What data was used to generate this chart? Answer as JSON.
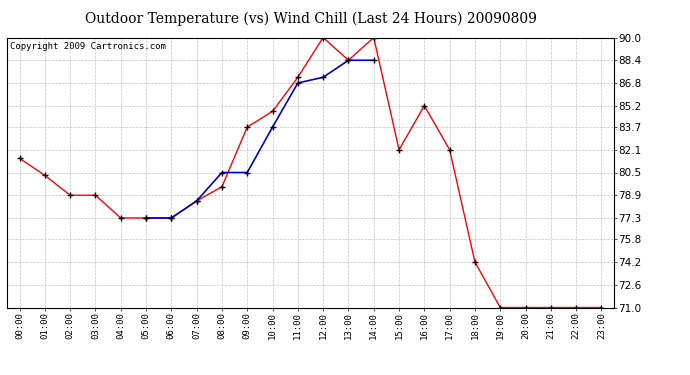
{
  "title": "Outdoor Temperature (vs) Wind Chill (Last 24 Hours) 20090809",
  "copyright": "Copyright 2009 Cartronics.com",
  "x_labels": [
    "00:00",
    "01:00",
    "02:00",
    "03:00",
    "04:00",
    "05:00",
    "06:00",
    "07:00",
    "08:00",
    "09:00",
    "10:00",
    "11:00",
    "12:00",
    "13:00",
    "14:00",
    "15:00",
    "16:00",
    "17:00",
    "18:00",
    "19:00",
    "20:00",
    "21:00",
    "22:00",
    "23:00"
  ],
  "temp_red": [
    81.5,
    80.3,
    78.9,
    78.9,
    77.3,
    77.3,
    77.3,
    78.5,
    79.5,
    83.7,
    84.8,
    87.2,
    90.0,
    88.4,
    90.0,
    82.1,
    85.2,
    82.1,
    74.2,
    71.0,
    71.0,
    71.0,
    71.0,
    71.0
  ],
  "wind_chill_blue": [
    null,
    null,
    null,
    null,
    null,
    77.3,
    77.3,
    78.5,
    80.5,
    80.5,
    83.7,
    86.8,
    87.2,
    88.4,
    88.4,
    null,
    null,
    null,
    null,
    null,
    null,
    null,
    null,
    null
  ],
  "ylim": [
    71.0,
    90.0
  ],
  "yticks": [
    71.0,
    72.6,
    74.2,
    75.8,
    77.3,
    78.9,
    80.5,
    82.1,
    83.7,
    85.2,
    86.8,
    88.4,
    90.0
  ],
  "red_color": "#FF0000",
  "blue_color": "#0000CC",
  "bg_color": "#FFFFFF",
  "grid_color": "#BBBBBB",
  "title_fontsize": 10,
  "copyright_fontsize": 6.5
}
